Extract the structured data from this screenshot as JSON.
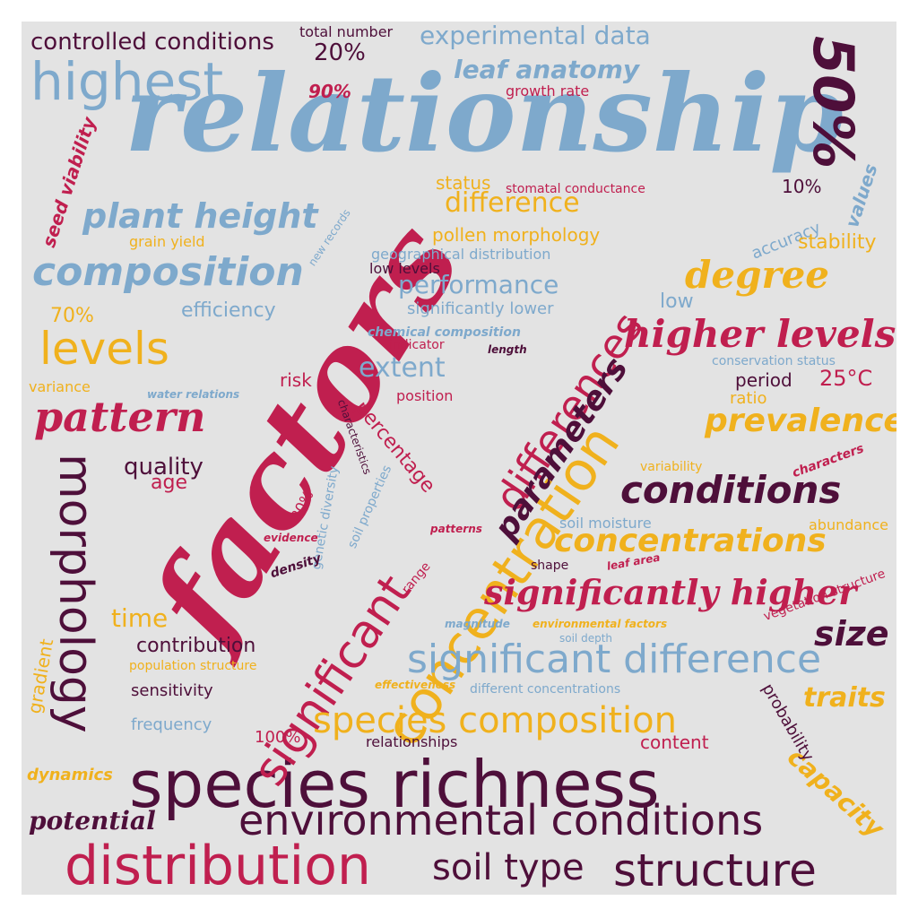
{
  "palette": {
    "blue": "#7ea9cc",
    "crimson": "#c01f4f",
    "gold": "#f0b11d",
    "plum": "#4e0f3a",
    "background": "#e3e3e3"
  },
  "words": [
    {
      "text": "relationship"
    },
    {
      "text": "factors"
    },
    {
      "text": "species richness"
    },
    {
      "text": "concentration"
    },
    {
      "text": "significant"
    },
    {
      "text": "differences"
    },
    {
      "text": "distribution"
    },
    {
      "text": "environmental conditions"
    },
    {
      "text": "structure"
    },
    {
      "text": "highest"
    },
    {
      "text": "composition"
    },
    {
      "text": "plant height"
    },
    {
      "text": "morphology"
    },
    {
      "text": "50%"
    },
    {
      "text": "significant difference"
    },
    {
      "text": "species composition"
    },
    {
      "text": "levels"
    },
    {
      "text": "pattern"
    },
    {
      "text": "higher levels"
    },
    {
      "text": "degree"
    },
    {
      "text": "conditions"
    },
    {
      "text": "concentrations"
    },
    {
      "text": "significantly higher"
    },
    {
      "text": "prevalence"
    },
    {
      "text": "parameters"
    },
    {
      "text": "soil type"
    },
    {
      "text": "size"
    },
    {
      "text": "traits"
    },
    {
      "text": "capacity"
    },
    {
      "text": "potential"
    },
    {
      "text": "controlled conditions"
    },
    {
      "text": "experimental data"
    },
    {
      "text": "leaf anatomy"
    },
    {
      "text": "total number"
    },
    {
      "text": "20%"
    },
    {
      "text": "90%"
    },
    {
      "text": "growth rate"
    },
    {
      "text": "seed viability"
    },
    {
      "text": "grain yield"
    },
    {
      "text": "status"
    },
    {
      "text": "stomatal conductance"
    },
    {
      "text": "difference"
    },
    {
      "text": "pollen morphology"
    },
    {
      "text": "geographical distribution"
    },
    {
      "text": "low levels"
    },
    {
      "text": "performance"
    },
    {
      "text": "significantly lower"
    },
    {
      "text": "efficiency"
    },
    {
      "text": "70%"
    },
    {
      "text": "variance"
    },
    {
      "text": "new records"
    },
    {
      "text": "10%"
    },
    {
      "text": "values"
    },
    {
      "text": "accuracy"
    },
    {
      "text": "stability"
    },
    {
      "text": "low"
    },
    {
      "text": "chemical composition"
    },
    {
      "text": "indicator"
    },
    {
      "text": "length"
    },
    {
      "text": "extent"
    },
    {
      "text": "risk"
    },
    {
      "text": "water relations"
    },
    {
      "text": "position"
    },
    {
      "text": "percentage"
    },
    {
      "text": "conservation status"
    },
    {
      "text": "period"
    },
    {
      "text": "25°C"
    },
    {
      "text": "ratio"
    },
    {
      "text": "quality"
    },
    {
      "text": "age"
    },
    {
      "text": "characteristics"
    },
    {
      "text": "genetic diversity"
    },
    {
      "text": "soil properties"
    },
    {
      "text": "80%"
    },
    {
      "text": "evidence"
    },
    {
      "text": "density"
    },
    {
      "text": "patterns"
    },
    {
      "text": "range"
    },
    {
      "text": "variability"
    },
    {
      "text": "characters"
    },
    {
      "text": "soil moisture"
    },
    {
      "text": "abundance"
    },
    {
      "text": "shape"
    },
    {
      "text": "leaf area"
    },
    {
      "text": "vegetation structure"
    },
    {
      "text": "time"
    },
    {
      "text": "magnitude"
    },
    {
      "text": "environmental factors"
    },
    {
      "text": "soil depth"
    },
    {
      "text": "gradient"
    },
    {
      "text": "contribution"
    },
    {
      "text": "population structure"
    },
    {
      "text": "sensitivity"
    },
    {
      "text": "effectiveness"
    },
    {
      "text": "different concentrations"
    },
    {
      "text": "probability"
    },
    {
      "text": "frequency"
    },
    {
      "text": "100%"
    },
    {
      "text": "relationships"
    },
    {
      "text": "content"
    },
    {
      "text": "dynamics"
    }
  ]
}
